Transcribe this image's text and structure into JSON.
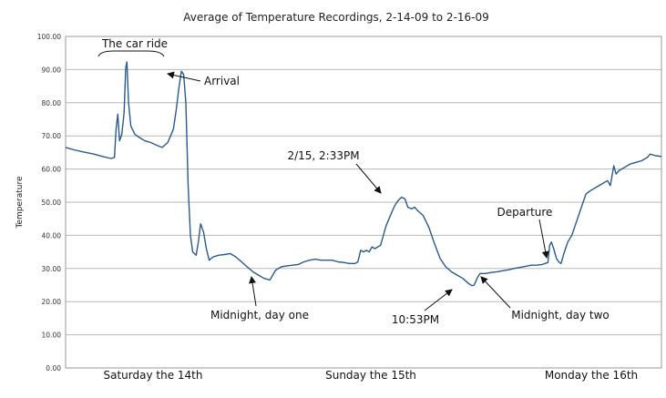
{
  "chart_data": {
    "type": "line",
    "title": "Average of Temperature Recordings, 2-14-09 to 2-16-09",
    "xlabel": "",
    "ylabel": "Temperature",
    "ylim": [
      0,
      100
    ],
    "yticks": [
      "0.00",
      "10.00",
      "20.00",
      "30.00",
      "40.00",
      "50.00",
      "60.00",
      "70.00",
      "80.00",
      "90.00",
      "100.00"
    ],
    "x_categories": [
      "Saturday the 14th",
      "Sunday the 15th",
      "Monday the 16th"
    ],
    "xlim": [
      0,
      100
    ],
    "grid": true,
    "legend": "none",
    "series": [
      {
        "color": "#2a5a8f",
        "points": [
          [
            0,
            66.5
          ],
          [
            1.5,
            65.8
          ],
          [
            3,
            65.2
          ],
          [
            5,
            64.5
          ],
          [
            6.5,
            63.8
          ],
          [
            8,
            63.2
          ],
          [
            8.6,
            63.5
          ],
          [
            8.9,
            72
          ],
          [
            9.2,
            76.5
          ],
          [
            9.5,
            68.5
          ],
          [
            9.9,
            70.5
          ],
          [
            10.3,
            77
          ],
          [
            10.6,
            90.5
          ],
          [
            10.8,
            92.3
          ],
          [
            11.1,
            80
          ],
          [
            11.5,
            73
          ],
          [
            12.2,
            70.5
          ],
          [
            13,
            69.5
          ],
          [
            14,
            68.5
          ],
          [
            15,
            68
          ],
          [
            16,
            67.2
          ],
          [
            17,
            66.5
          ],
          [
            18,
            68
          ],
          [
            18.5,
            70
          ],
          [
            19,
            72
          ],
          [
            19.5,
            78
          ],
          [
            20,
            85
          ],
          [
            20.4,
            89.5
          ],
          [
            20.8,
            88.5
          ],
          [
            21.2,
            80
          ],
          [
            21.6,
            55
          ],
          [
            22,
            40
          ],
          [
            22.4,
            35
          ],
          [
            23,
            34
          ],
          [
            23.4,
            38
          ],
          [
            23.8,
            43.5
          ],
          [
            24.3,
            41
          ],
          [
            24.8,
            36
          ],
          [
            25.3,
            32.5
          ],
          [
            26,
            33.5
          ],
          [
            27,
            34
          ],
          [
            28,
            34.2
          ],
          [
            29,
            34.5
          ],
          [
            30,
            33.5
          ],
          [
            31,
            32
          ],
          [
            32,
            30.5
          ],
          [
            33,
            29
          ],
          [
            34,
            28
          ],
          [
            35,
            27
          ],
          [
            36,
            26.5
          ],
          [
            36.5,
            28
          ],
          [
            37,
            29.5
          ],
          [
            38,
            30.5
          ],
          [
            39,
            30.8
          ],
          [
            40,
            31
          ],
          [
            41,
            31.2
          ],
          [
            42,
            32
          ],
          [
            43,
            32.5
          ],
          [
            44,
            32.8
          ],
          [
            45,
            32.5
          ],
          [
            46,
            32.5
          ],
          [
            47,
            32.5
          ],
          [
            48,
            32
          ],
          [
            49,
            31.8
          ],
          [
            50,
            31.5
          ],
          [
            51,
            31.5
          ],
          [
            51.5,
            32
          ],
          [
            52,
            35.5
          ],
          [
            52.5,
            35
          ],
          [
            53,
            35.5
          ],
          [
            53.5,
            35
          ],
          [
            54,
            36.5
          ],
          [
            54.5,
            36
          ],
          [
            55,
            36.5
          ],
          [
            55.5,
            37
          ],
          [
            56,
            40
          ],
          [
            56.5,
            43
          ],
          [
            57,
            45
          ],
          [
            57.5,
            47
          ],
          [
            58,
            49
          ],
          [
            58.6,
            50.5
          ],
          [
            59.2,
            51.5
          ],
          [
            59.8,
            51
          ],
          [
            60.3,
            48.5
          ],
          [
            61,
            48
          ],
          [
            61.5,
            48.5
          ],
          [
            62,
            47.5
          ],
          [
            63,
            46
          ],
          [
            64,
            42.5
          ],
          [
            65,
            37.5
          ],
          [
            66,
            33
          ],
          [
            67,
            30.5
          ],
          [
            68,
            29
          ],
          [
            69,
            28
          ],
          [
            70,
            27
          ],
          [
            71,
            25.5
          ],
          [
            71.6,
            24.8
          ],
          [
            72,
            25
          ],
          [
            72.5,
            27
          ],
          [
            73,
            28.5
          ],
          [
            74,
            28.5
          ],
          [
            75,
            28.8
          ],
          [
            76,
            29
          ],
          [
            77,
            29.3
          ],
          [
            78,
            29.6
          ],
          [
            79,
            30
          ],
          [
            80,
            30.3
          ],
          [
            81,
            30.6
          ],
          [
            82,
            31
          ],
          [
            83,
            31
          ],
          [
            84,
            31.2
          ],
          [
            85,
            31.8
          ],
          [
            85.3,
            37
          ],
          [
            85.6,
            38
          ],
          [
            86,
            36
          ],
          [
            86.5,
            33
          ],
          [
            87,
            31.8
          ],
          [
            87.3,
            31.5
          ],
          [
            87.8,
            34.5
          ],
          [
            88.5,
            38
          ],
          [
            89.2,
            40
          ],
          [
            90,
            44
          ],
          [
            91,
            49
          ],
          [
            91.7,
            52.5
          ],
          [
            92.5,
            53.5
          ],
          [
            93.5,
            54.5
          ],
          [
            94.5,
            55.5
          ],
          [
            95.5,
            56.5
          ],
          [
            96,
            55
          ],
          [
            96.3,
            58
          ],
          [
            96.6,
            61
          ],
          [
            97,
            58.5
          ],
          [
            97.5,
            59.5
          ],
          [
            98.5,
            60.5
          ],
          [
            99.5,
            61.5
          ],
          [
            100.5,
            62
          ],
          [
            101.5,
            62.5
          ],
          [
            102.5,
            63.5
          ],
          [
            103,
            64.5
          ],
          [
            104,
            64
          ],
          [
            105,
            63.8
          ]
        ]
      }
    ],
    "annotations": [
      {
        "text": "The car ride",
        "type": "bracket"
      },
      {
        "text": "Arrival",
        "type": "arrow"
      },
      {
        "text": "2/15, 2:33PM",
        "type": "arrow"
      },
      {
        "text": "Departure",
        "type": "arrow"
      },
      {
        "text": "Midnight, day one",
        "type": "arrow"
      },
      {
        "text": "10:53PM",
        "type": "arrow"
      },
      {
        "text": "Midnight, day two",
        "type": "arrow"
      }
    ]
  }
}
